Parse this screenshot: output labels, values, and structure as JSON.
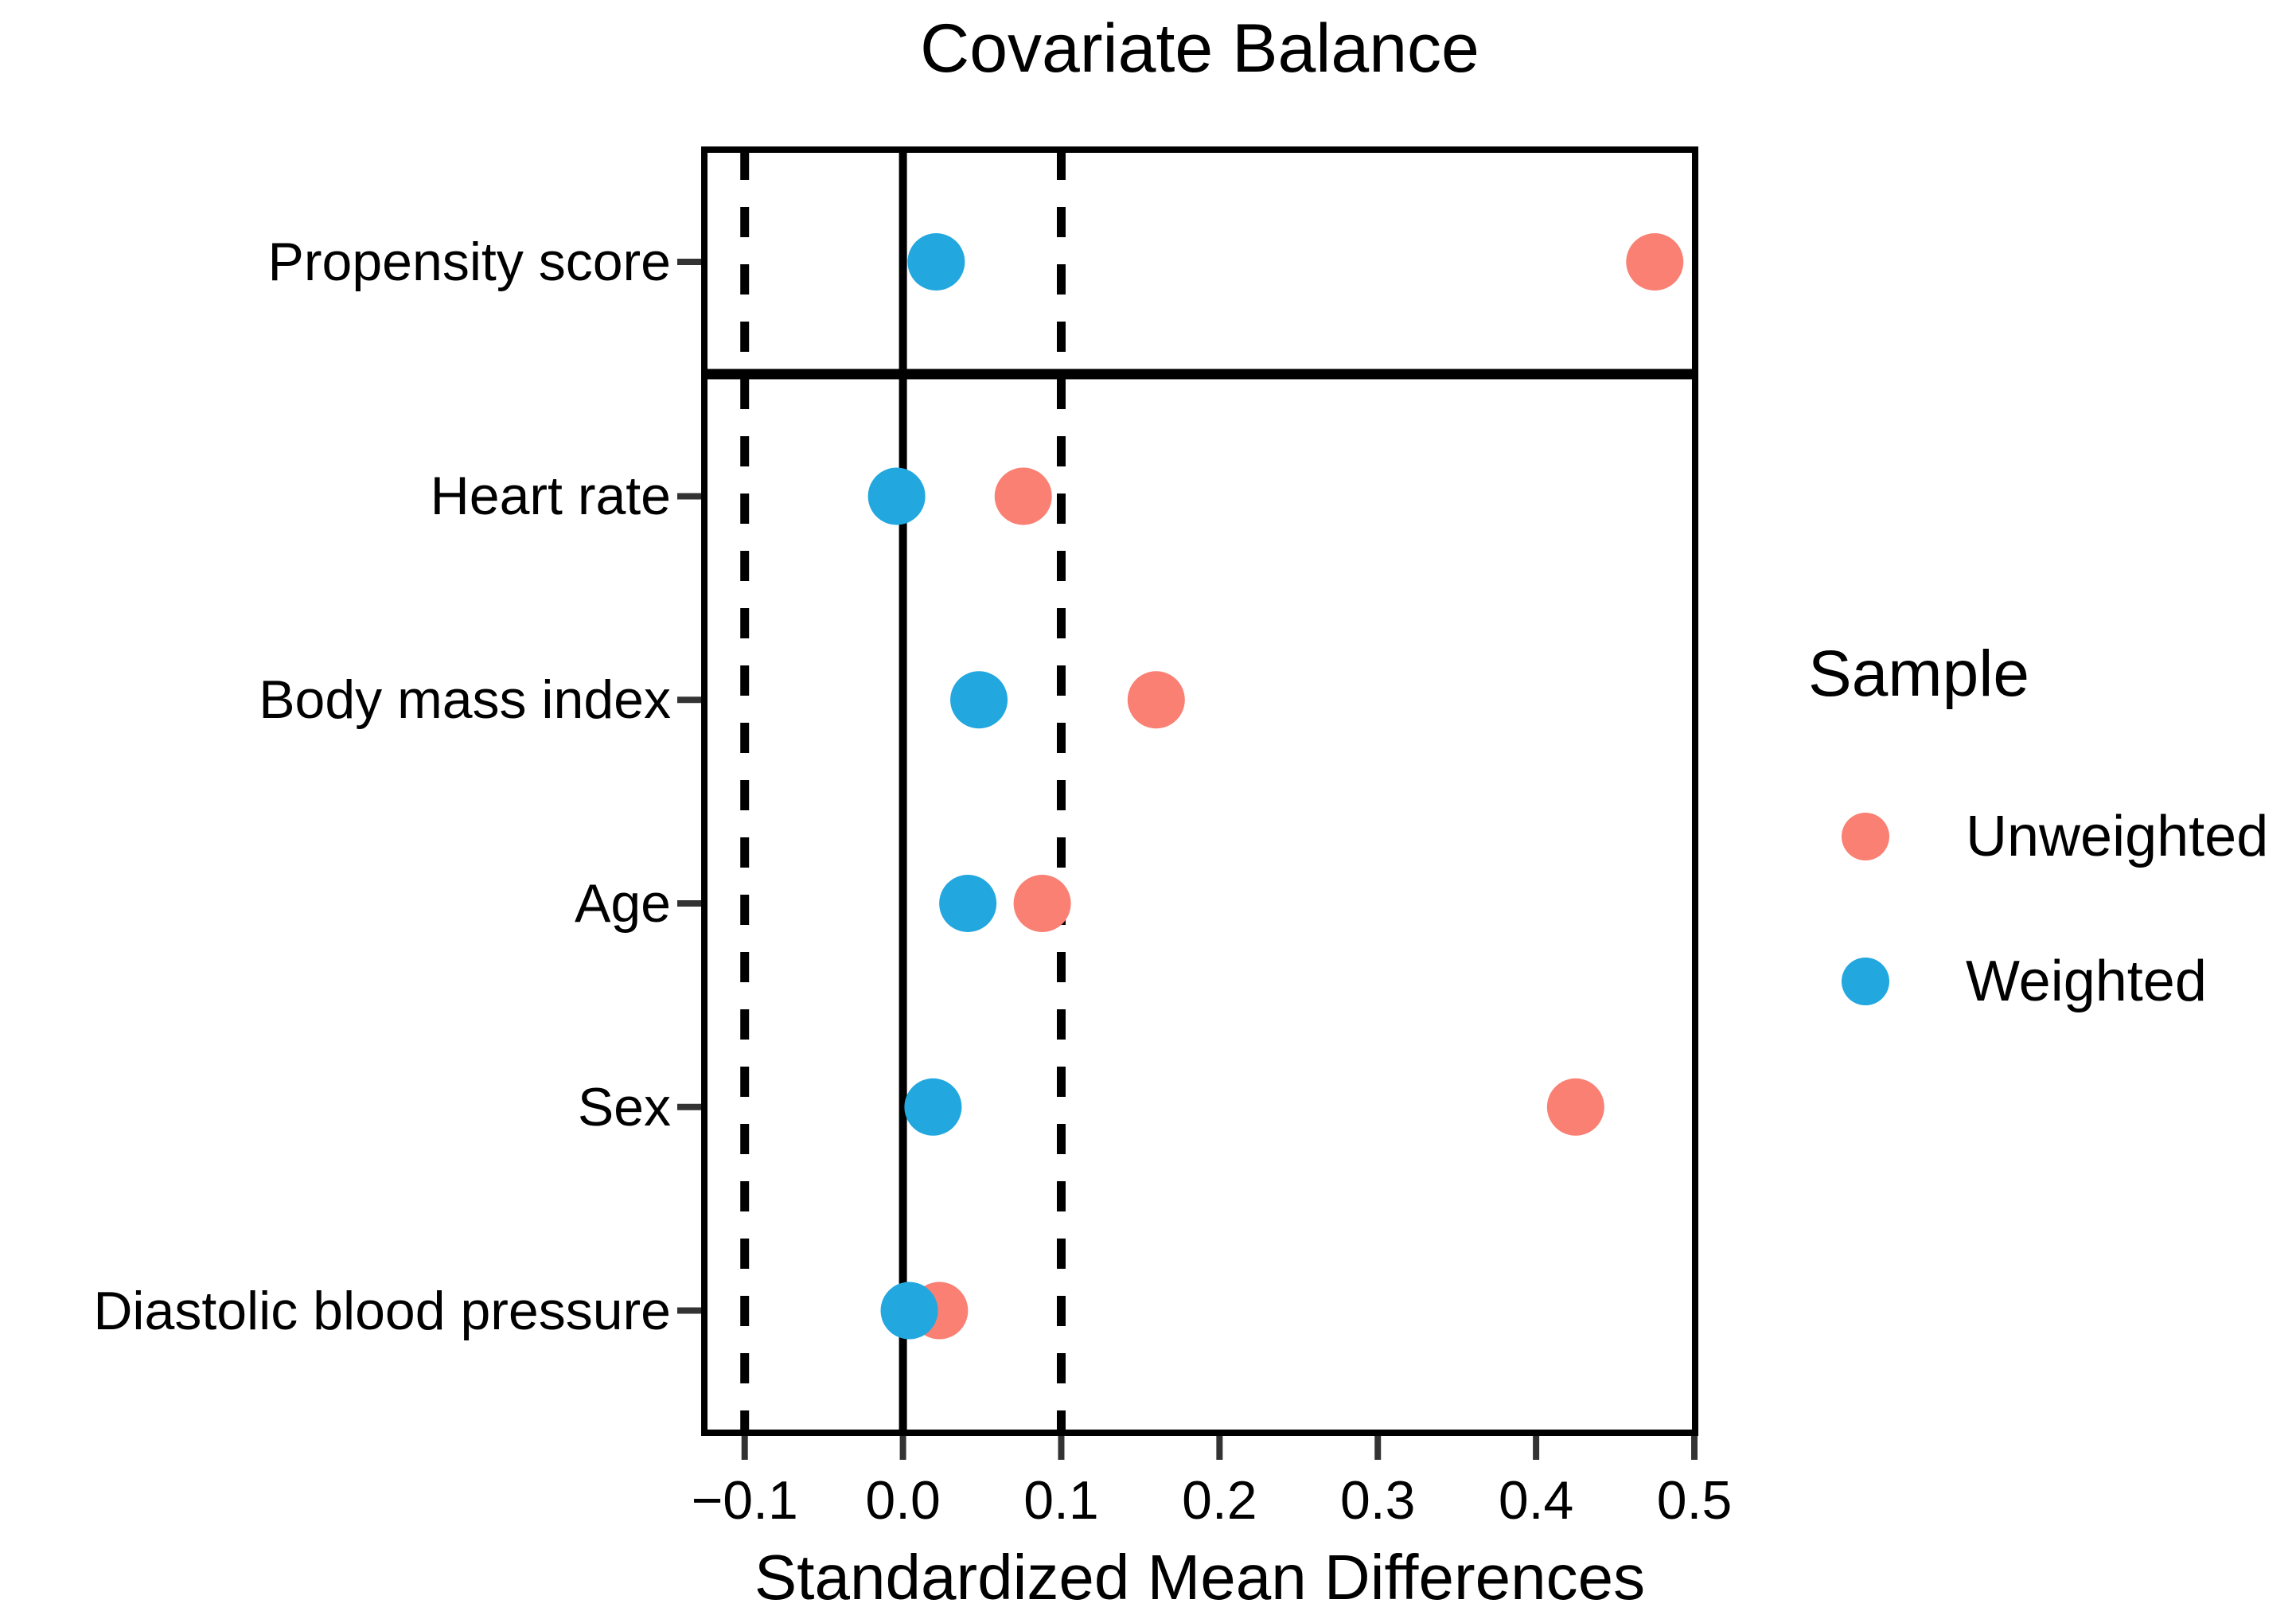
{
  "title": "Covariate Balance",
  "x_axis": {
    "label": "Standardized Mean Differences",
    "range": [
      -0.1255,
      0.5005
    ],
    "tick_values": [
      -0.1,
      0.0,
      0.1,
      0.2,
      0.3,
      0.4,
      0.5
    ],
    "tick_labels": [
      "−0.1",
      "0.0",
      "0.1",
      "0.2",
      "0.3",
      "0.4",
      "0.5"
    ]
  },
  "legend": {
    "title": "Sample",
    "items": [
      {
        "label": "Unweighted",
        "color": "#F98073"
      },
      {
        "label": "Weighted",
        "color": "#22A7DF"
      }
    ]
  },
  "colors": {
    "unweighted": "#F98073",
    "weighted": "#22A7DF",
    "line": "#000000",
    "tick": "#333333",
    "text": "#000000"
  },
  "chart_data": {
    "type": "scatter",
    "title": "Covariate Balance",
    "xlabel": "Standardized Mean Differences",
    "xlim": [
      -0.1255,
      0.5005
    ],
    "x_ticks": [
      -0.1,
      0.0,
      0.1,
      0.2,
      0.3,
      0.4,
      0.5
    ],
    "reference_lines": {
      "solid": [
        0.0
      ],
      "dashed": [
        -0.1,
        0.1
      ]
    },
    "facets": [
      {
        "name": "top",
        "rows": [
          "Propensity score"
        ]
      },
      {
        "name": "bottom",
        "rows": [
          "Heart rate",
          "Body mass index",
          "Age",
          "Sex",
          "Diastolic blood pressure"
        ]
      }
    ],
    "series": [
      {
        "name": "Unweighted",
        "color": "#F98073",
        "points": [
          {
            "covariate": "Propensity score",
            "smd": 0.475
          },
          {
            "covariate": "Heart rate",
            "smd": 0.076
          },
          {
            "covariate": "Body mass index",
            "smd": 0.16
          },
          {
            "covariate": "Age",
            "smd": 0.088
          },
          {
            "covariate": "Sex",
            "smd": 0.425
          },
          {
            "covariate": "Diastolic blood pressure",
            "smd": 0.023
          }
        ]
      },
      {
        "name": "Weighted",
        "color": "#22A7DF",
        "points": [
          {
            "covariate": "Propensity score",
            "smd": 0.021
          },
          {
            "covariate": "Heart rate",
            "smd": -0.004
          },
          {
            "covariate": "Body mass index",
            "smd": 0.048
          },
          {
            "covariate": "Age",
            "smd": 0.041
          },
          {
            "covariate": "Sex",
            "smd": 0.019
          },
          {
            "covariate": "Diastolic blood pressure",
            "smd": 0.004
          }
        ]
      }
    ],
    "legend_title": "Sample",
    "legend_position": "right",
    "grid": false
  }
}
